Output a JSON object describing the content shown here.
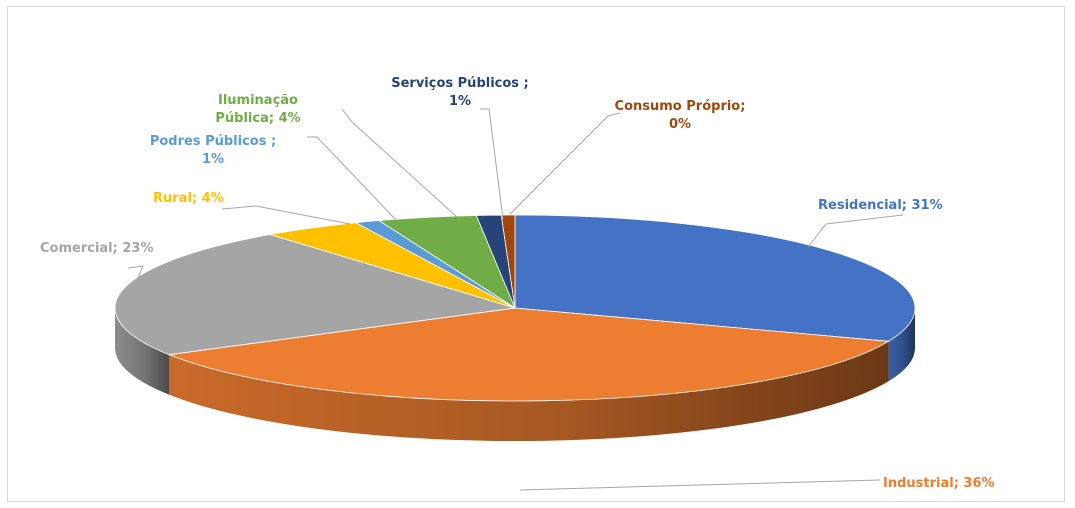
{
  "chart_data": {
    "type": "pie",
    "title": "",
    "labels": [
      "Residencial",
      "Industrial",
      "Comercial",
      "Rural",
      "Podres Públicos",
      "Iluminação Pública",
      "Serviços Públicos",
      "Consumo Próprio"
    ],
    "values": [
      31,
      36,
      23,
      4,
      1,
      4,
      1,
      0
    ],
    "colors": [
      "#4472C4",
      "#ED7D31",
      "#A5A5A5",
      "#FFC000",
      "#5B9BD5",
      "#70AD47",
      "#264478",
      "#9E480E"
    ],
    "data_labels": [
      [
        "Residencial; 31%"
      ],
      [
        "Industrial; 36%"
      ],
      [
        "Comercial; 23%"
      ],
      [
        "Rural; 4%"
      ],
      [
        "Podres Públicos ;",
        "1%"
      ],
      [
        "Iluminação",
        "Pública; 4%"
      ],
      [
        "Serviços Públicos ;",
        "1%"
      ],
      [
        "Consumo Próprio;",
        "0%"
      ]
    ],
    "style": "3d"
  }
}
